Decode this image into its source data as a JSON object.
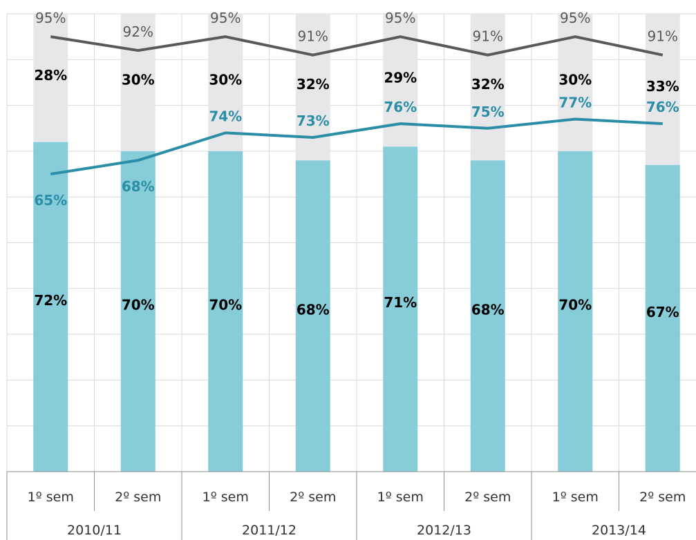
{
  "chart_data": {
    "type": "bar",
    "grid": true,
    "legend": "none",
    "ylim": [
      0,
      100
    ],
    "semesters": [
      "1º sem",
      "2º sem",
      "1º sem",
      "2º sem",
      "1º sem",
      "2º sem",
      "1º sem",
      "2º sem"
    ],
    "years": [
      "2010/11",
      "2011/12",
      "2012/13",
      "2013/14"
    ],
    "series": [
      {
        "kind": "stacked-bar-lower",
        "color": "#86CCD9",
        "values": [
          72,
          70,
          70,
          68,
          71,
          68,
          70,
          67
        ],
        "labels": [
          "72%",
          "70%",
          "70%",
          "68%",
          "71%",
          "68%",
          "70%",
          "67%"
        ]
      },
      {
        "kind": "stacked-bar-upper",
        "color": "#E7E7E9",
        "values": [
          28,
          30,
          30,
          32,
          29,
          32,
          30,
          33
        ],
        "labels": [
          "28%",
          "30%",
          "30%",
          "32%",
          "29%",
          "32%",
          "30%",
          "33%"
        ]
      },
      {
        "kind": "line",
        "color": "#58595B",
        "values": [
          95,
          92,
          95,
          91,
          95,
          91,
          95,
          91
        ],
        "labels": [
          "95%",
          "92%",
          "95%",
          "91%",
          "95%",
          "91%",
          "95%",
          "91%"
        ]
      },
      {
        "kind": "line",
        "color": "#2A8FA6",
        "values": [
          65,
          68,
          74,
          73,
          76,
          75,
          77,
          76
        ],
        "labels": [
          "65%",
          "68%",
          "74%",
          "73%",
          "76%",
          "75%",
          "77%",
          "76%"
        ]
      }
    ]
  }
}
